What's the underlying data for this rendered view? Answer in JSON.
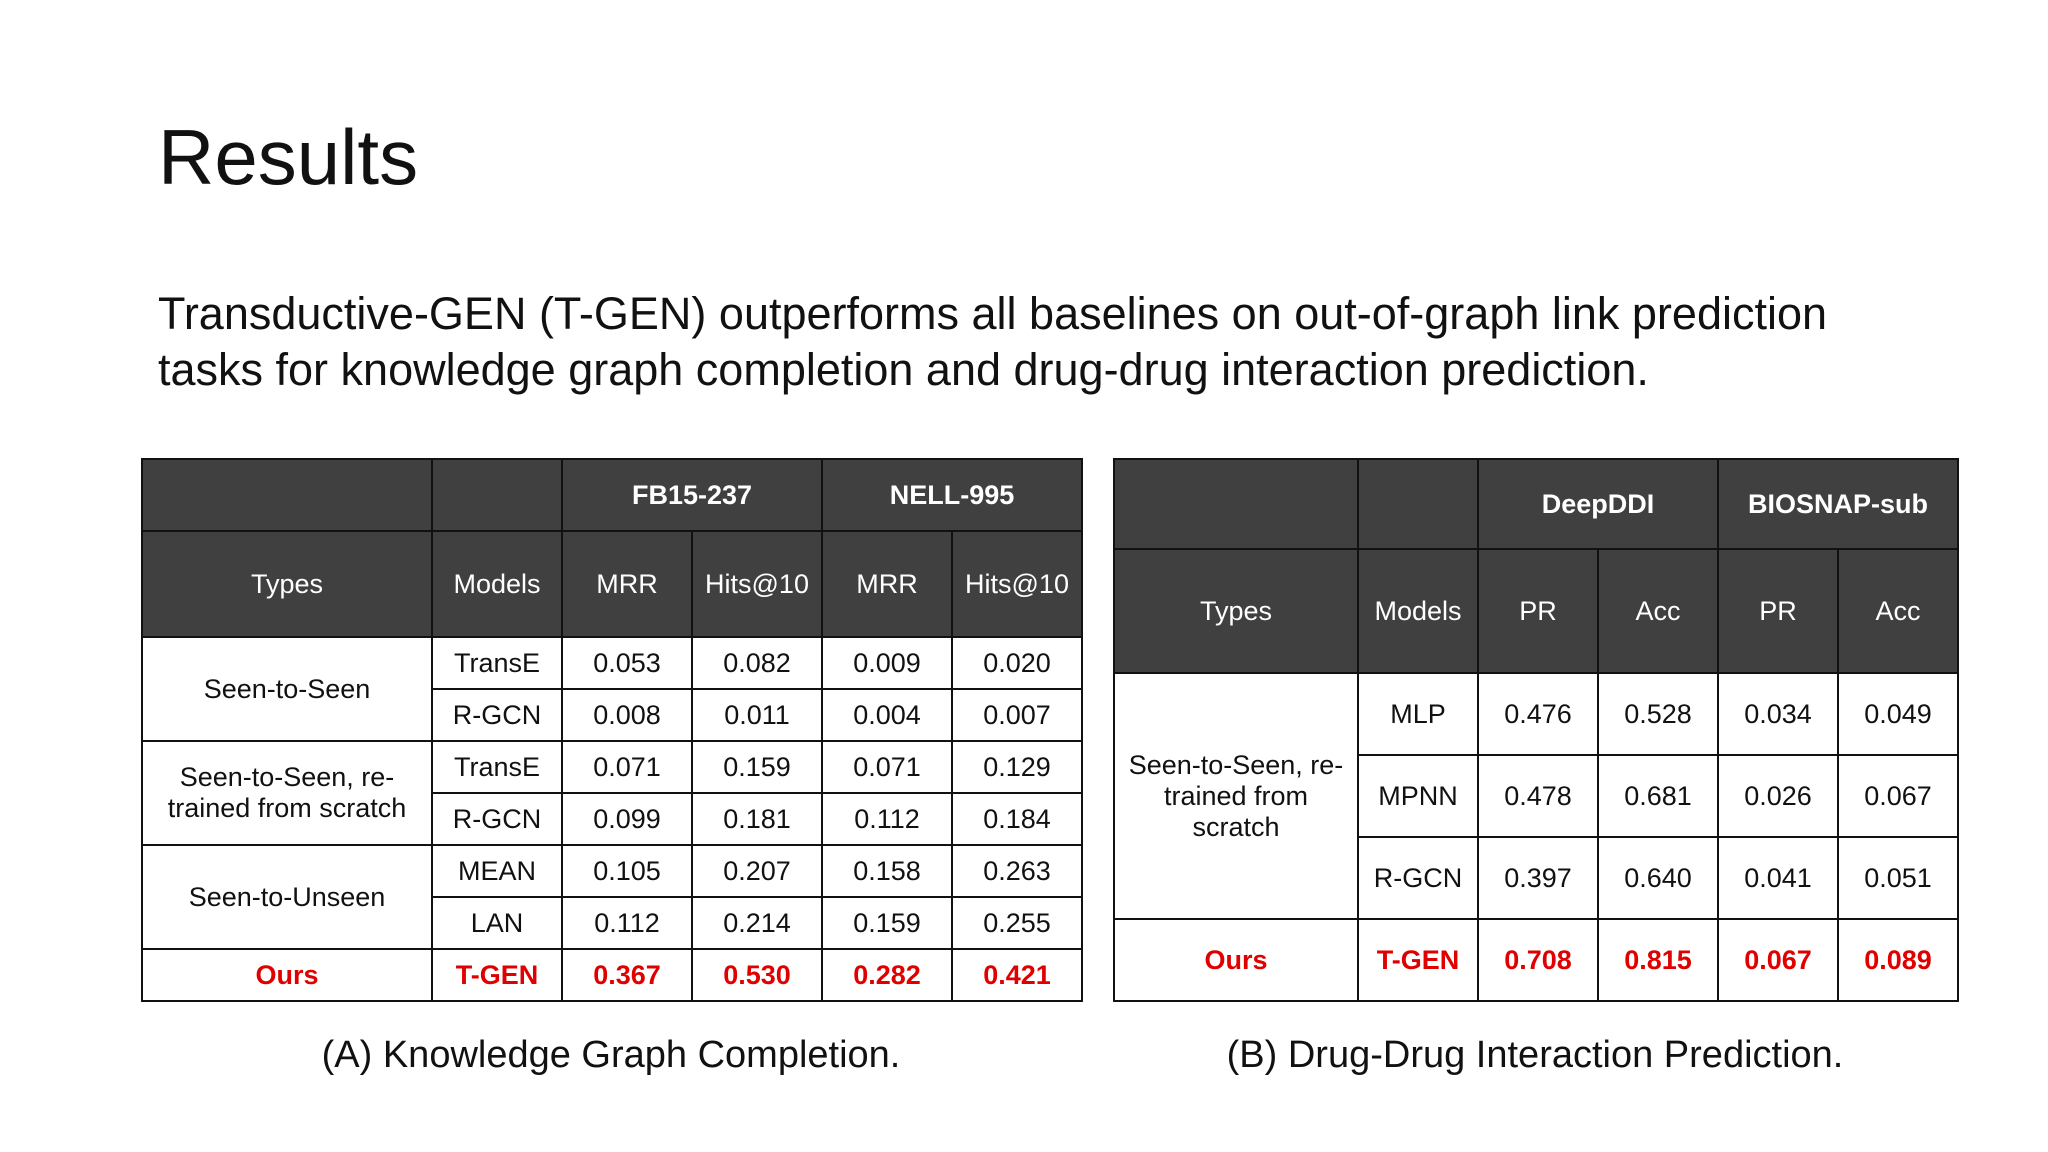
{
  "slide": {
    "title": "Results",
    "subtitle": "Transductive-GEN (T-GEN) outperforms all baselines on out-of-graph link prediction tasks for knowledge graph completion and drug-drug interaction prediction."
  },
  "table_a": {
    "caption": "(A) Knowledge Graph Completion.",
    "datasets": [
      "FB15-237",
      "NELL-995"
    ],
    "headers": [
      "Types",
      "Models",
      "MRR",
      "Hits@10",
      "MRR",
      "Hits@10"
    ],
    "groups": [
      {
        "type": "Seen-to-Seen",
        "rows": [
          {
            "model": "TransE",
            "values": [
              "0.053",
              "0.082",
              "0.009",
              "0.020"
            ]
          },
          {
            "model": "R-GCN",
            "values": [
              "0.008",
              "0.011",
              "0.004",
              "0.007"
            ]
          }
        ]
      },
      {
        "type": "Seen-to-Seen, re-trained from scratch",
        "rows": [
          {
            "model": "TransE",
            "values": [
              "0.071",
              "0.159",
              "0.071",
              "0.129"
            ]
          },
          {
            "model": "R-GCN",
            "values": [
              "0.099",
              "0.181",
              "0.112",
              "0.184"
            ]
          }
        ]
      },
      {
        "type": "Seen-to-Unseen",
        "rows": [
          {
            "model": "MEAN",
            "values": [
              "0.105",
              "0.207",
              "0.158",
              "0.263"
            ]
          },
          {
            "model": "LAN",
            "values": [
              "0.112",
              "0.214",
              "0.159",
              "0.255"
            ]
          }
        ]
      }
    ],
    "ours": {
      "type": "Ours",
      "model": "T-GEN",
      "values": [
        "0.367",
        "0.530",
        "0.282",
        "0.421"
      ]
    }
  },
  "table_b": {
    "caption": "(B) Drug-Drug Interaction Prediction.",
    "datasets": [
      "DeepDDI",
      "BIOSNAP-sub"
    ],
    "headers": [
      "Types",
      "Models",
      "PR",
      "Acc",
      "PR",
      "Acc"
    ],
    "groups": [
      {
        "type": "Seen-to-Seen, re-trained from scratch",
        "rows": [
          {
            "model": "MLP",
            "values": [
              "0.476",
              "0.528",
              "0.034",
              "0.049"
            ]
          },
          {
            "model": "MPNN",
            "values": [
              "0.478",
              "0.681",
              "0.026",
              "0.067"
            ]
          },
          {
            "model": "R-GCN",
            "values": [
              "0.397",
              "0.640",
              "0.041",
              "0.051"
            ]
          }
        ]
      }
    ],
    "ours": {
      "type": "Ours",
      "model": "T-GEN",
      "values": [
        "0.708",
        "0.815",
        "0.067",
        "0.089"
      ]
    }
  }
}
